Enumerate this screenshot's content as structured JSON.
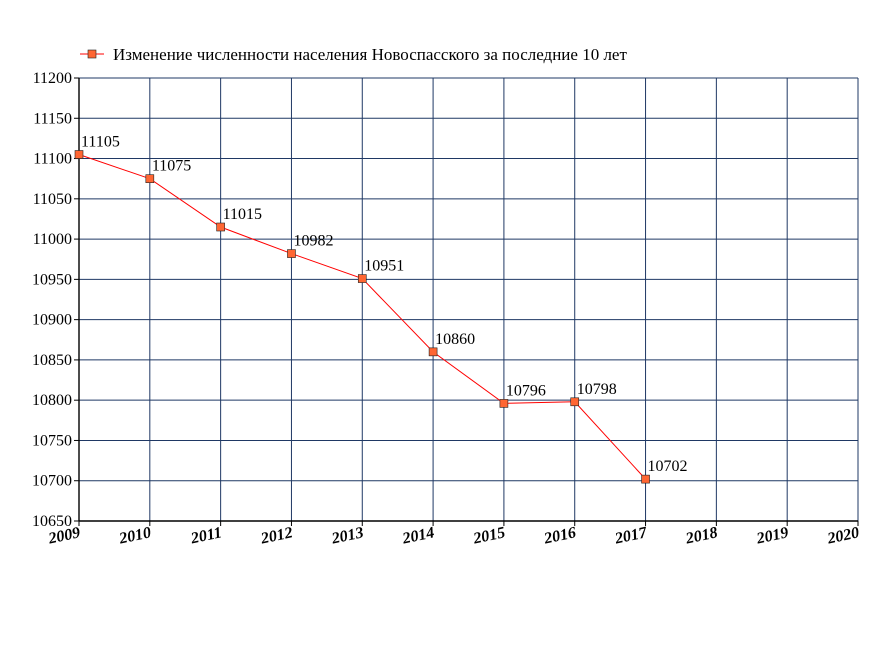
{
  "chart_data": {
    "type": "line",
    "x": [
      2009,
      2010,
      2011,
      2012,
      2013,
      2014,
      2015,
      2016,
      2017
    ],
    "series": [
      {
        "name": "Изменение численности населения Новоспасского за последние 10 лет",
        "values": [
          11105,
          11075,
          11015,
          10982,
          10951,
          10860,
          10796,
          10798,
          10702
        ]
      }
    ],
    "x_ticks": [
      "2009",
      "2010",
      "2011",
      "2012",
      "2013",
      "2014",
      "2015",
      "2016",
      "2017",
      "2018",
      "2019",
      "2020"
    ],
    "y_ticks": [
      "10650",
      "10700",
      "10750",
      "10800",
      "10850",
      "10900",
      "10950",
      "11000",
      "11050",
      "11100",
      "11150",
      "11200"
    ],
    "xlim": [
      2009,
      2020
    ],
    "ylim": [
      10650,
      11200
    ],
    "grid": true,
    "legend_position": "top",
    "colors": {
      "line": "#ff0000",
      "marker_fill": "#ff6633",
      "grid": "#1f3864",
      "axis": "#000000"
    }
  }
}
